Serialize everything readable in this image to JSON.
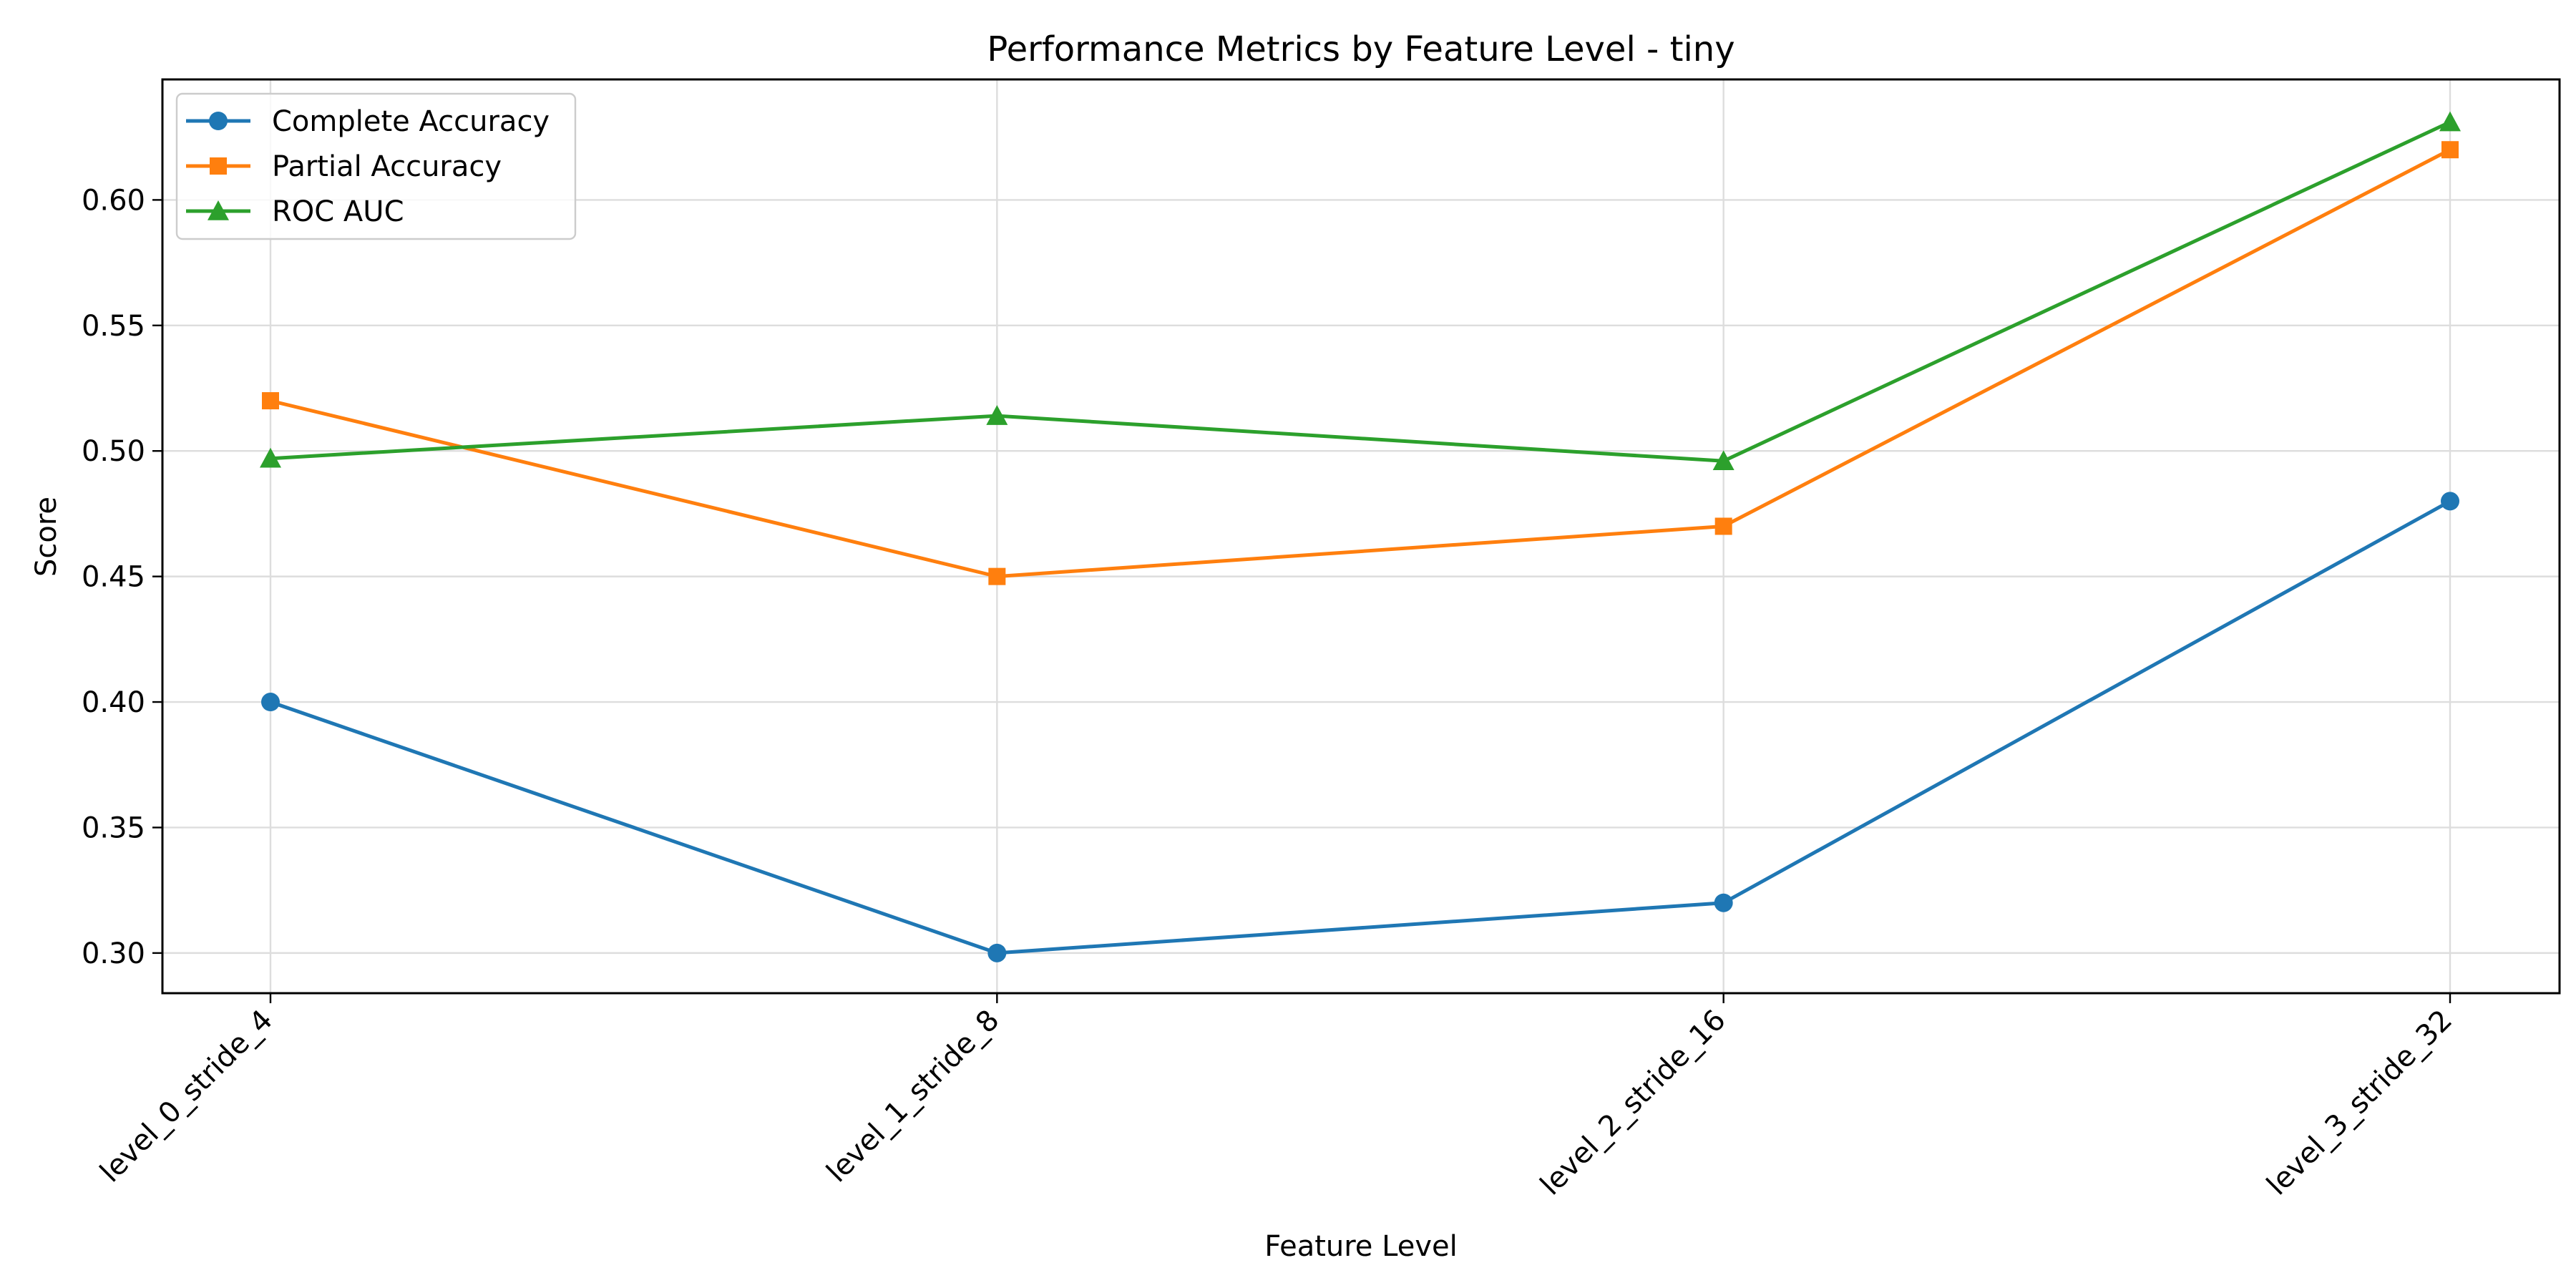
{
  "chart_data": {
    "type": "line",
    "title": "Performance Metrics by Feature Level - tiny",
    "xlabel": "Feature Level",
    "ylabel": "Score",
    "categories": [
      "level_0_stride_4",
      "level_1_stride_8",
      "level_2_stride_16",
      "level_3_stride_32"
    ],
    "ylim": [
      0.284,
      0.648
    ],
    "yticks": [
      0.3,
      0.35,
      0.4,
      0.45,
      0.5,
      0.55,
      0.6
    ],
    "ytick_labels": [
      "0.30",
      "0.35",
      "0.40",
      "0.45",
      "0.50",
      "0.55",
      "0.60"
    ],
    "grid": true,
    "legend_position": "top-left",
    "series": [
      {
        "name": "Complete Accuracy",
        "color": "#1f77b4",
        "marker": "circle",
        "values": [
          0.4,
          0.3,
          0.32,
          0.48
        ]
      },
      {
        "name": "Partial Accuracy",
        "color": "#ff7f0e",
        "marker": "square",
        "values": [
          0.52,
          0.45,
          0.47,
          0.62
        ]
      },
      {
        "name": "ROC AUC",
        "color": "#2ca02c",
        "marker": "triangle",
        "values": [
          0.497,
          0.514,
          0.496,
          0.631
        ]
      }
    ]
  }
}
